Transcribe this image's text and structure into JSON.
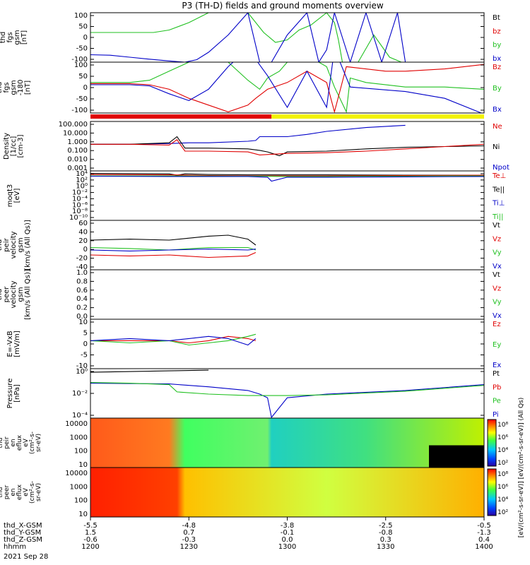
{
  "title": "P3 (TH-D) fields and ground moments overview",
  "colors": {
    "black": "#000000",
    "red": "#e00000",
    "green": "#20c020",
    "blue": "#0000c8",
    "yellow": "#f2f200",
    "bar_red": "#e00000"
  },
  "chart_data": {
    "type": "line",
    "x_range": [
      "1200",
      "1400"
    ],
    "x_tick_labels": [
      "1200",
      "1230",
      "1300",
      "1330",
      "1400"
    ],
    "footer": {
      "rows": [
        {
          "label": "thd_X-GSM",
          "values": [
            "-5.5",
            "-4.8",
            "-3.8",
            "-2.5",
            "-0.5"
          ]
        },
        {
          "label": "thd_Y-GSM",
          "values": [
            "1.5",
            "0.7",
            "-0.1",
            "-0.8",
            "-1.3"
          ]
        },
        {
          "label": "thd_Z-GSM",
          "values": [
            "-0.6",
            "-0.3",
            "0.0",
            "0.3",
            "0.4"
          ]
        },
        {
          "label": "hhmm",
          "values": [
            "1200",
            "1230",
            "1300",
            "1330",
            "1400"
          ]
        }
      ],
      "date": "2021 Sep 28"
    },
    "panels": [
      {
        "ylabel": [
          "thd",
          "fgs",
          "gsm",
          "[nT]"
        ],
        "yticks": [
          "100",
          "50",
          "0",
          "-50",
          "-100"
        ],
        "yrange": [
          -100,
          100
        ],
        "legend": [
          "Bt",
          "bz",
          "by",
          "bx"
        ],
        "series": [
          {
            "name": "by",
            "color": "green",
            "x": [
              0,
              0.16,
              0.2,
              0.25,
              0.3,
              0.37,
              0.4,
              0.44,
              0.47,
              0.5,
              0.53,
              0.56,
              0.6,
              0.62,
              0.63,
              0.64,
              0.68,
              0.72,
              0.76,
              0.79,
              0.8
            ],
            "y": [
              20,
              20,
              30,
              60,
              100,
              160,
              100,
              20,
              -20,
              -10,
              30,
              50,
              100,
              60,
              -10,
              -100,
              -100,
              10,
              -80,
              -100,
              -100
            ]
          },
          {
            "name": "bx",
            "color": "blue",
            "x": [
              0,
              0.05,
              0.1,
              0.15,
              0.2,
              0.24,
              0.27,
              0.3,
              0.35,
              0.4,
              0.43,
              0.46,
              0.5,
              0.55,
              0.58,
              0.6,
              0.62,
              0.66,
              0.7,
              0.74,
              0.78,
              0.8
            ],
            "y": [
              -70,
              -72,
              -80,
              -88,
              -95,
              -100,
              -90,
              -60,
              10,
              100,
              -100,
              -100,
              10,
              100,
              -100,
              -50,
              100,
              -100,
              100,
              -100,
              100,
              -100
            ]
          }
        ]
      },
      {
        "ylabel": [
          "thd",
          "fgs",
          "gsm",
          "-180",
          "[nT]"
        ],
        "yticks": [
          "100",
          "50",
          "0",
          "-50",
          "-100"
        ],
        "yrange": [
          -125,
          100
        ],
        "legend": [
          "Bz",
          "By",
          "Bx"
        ],
        "series": [
          {
            "name": "By",
            "color": "green",
            "x": [
              0,
              0.1,
              0.15,
              0.2,
              0.25,
              0.3,
              0.35,
              0.4,
              0.43,
              0.45,
              0.48,
              0.5,
              0.55,
              0.6,
              0.62,
              0.65,
              0.66,
              0.7,
              0.8,
              0.9,
              1
            ],
            "y": [
              10,
              10,
              20,
              60,
              100,
              160,
              100,
              20,
              -20,
              30,
              60,
              100,
              130,
              80,
              -10,
              -120,
              30,
              10,
              -10,
              -10,
              -20
            ]
          },
          {
            "name": "Bz",
            "color": "red",
            "x": [
              0,
              0.1,
              0.15,
              0.2,
              0.25,
              0.3,
              0.35,
              0.4,
              0.42,
              0.45,
              0.5,
              0.55,
              0.6,
              0.62,
              0.65,
              0.75,
              0.8,
              0.9,
              1
            ],
            "y": [
              5,
              5,
              0,
              -20,
              -60,
              -90,
              -120,
              -90,
              -60,
              -20,
              10,
              60,
              10,
              -120,
              80,
              60,
              60,
              70,
              90
            ]
          },
          {
            "name": "Bx",
            "color": "blue",
            "x": [
              0,
              0.1,
              0.15,
              0.2,
              0.25,
              0.3,
              0.35,
              0.4,
              0.45,
              0.5,
              0.55,
              0.6,
              0.62,
              0.66,
              0.8,
              0.9,
              1
            ],
            "y": [
              0,
              0,
              -5,
              -40,
              -70,
              -20,
              80,
              160,
              40,
              -100,
              60,
              -100,
              160,
              -10,
              -30,
              -60,
              -130
            ]
          }
        ]
      },
      {
        "ylabel": [
          "Density",
          "[1/cc]",
          "[cm-3]"
        ],
        "yticks": [
          "100.000",
          "10.000",
          "1.000",
          "0.100",
          "0.010",
          "0.001"
        ],
        "log": true,
        "yrange": [
          -3.5,
          3
        ],
        "legend": [
          "Ne",
          "Ni",
          "Npot"
        ],
        "series": [
          {
            "name": "Npot",
            "color": "blue",
            "x": [
              0,
              0.1,
              0.2,
              0.25,
              0.3,
              0.4,
              0.42,
              0.43,
              0.5,
              0.55,
              0.6,
              0.7,
              0.8
            ],
            "y": [
              0,
              0,
              0.1,
              0.2,
              0.2,
              0.4,
              0.5,
              1,
              1,
              1.3,
              1.7,
              2.2,
              2.5
            ]
          },
          {
            "name": "Ni",
            "color": "black",
            "x": [
              0,
              0.1,
              0.2,
              0.22,
              0.24,
              0.3,
              0.4,
              0.43,
              0.45,
              0.48,
              0.5,
              0.6,
              0.7,
              0.8,
              0.9,
              1
            ],
            "y": [
              0,
              0,
              0.2,
              1,
              -0.5,
              -0.5,
              -0.6,
              -0.8,
              -1,
              -1.5,
              -1,
              -0.9,
              -0.6,
              -0.4,
              -0.3,
              -0.2
            ]
          },
          {
            "name": "Ne",
            "color": "red",
            "x": [
              0,
              0.1,
              0.2,
              0.22,
              0.24,
              0.3,
              0.4,
              0.43,
              0.5,
              0.6,
              0.7,
              0.8,
              0.9,
              1
            ],
            "y": [
              0,
              0,
              -0.1,
              0.6,
              -0.9,
              -0.9,
              -1,
              -1.4,
              -1.2,
              -1.1,
              -0.9,
              -0.6,
              -0.3,
              0
            ]
          }
        ]
      },
      {
        "ylabel": [
          "moqt3",
          "[eV]"
        ],
        "yticks": [
          "10⁴",
          "10²",
          "10⁰",
          "10⁻²",
          "10⁻⁴",
          "10⁻⁶",
          "10⁻⁸",
          "10⁻¹⁰"
        ],
        "log": true,
        "yrange": [
          -10.5,
          4.5
        ],
        "legend": [
          "Te⊥",
          "Te||",
          "Ti⊥",
          "Ti||"
        ],
        "series": [
          {
            "name": "Te||",
            "color": "black",
            "x": [
              0,
              0.2,
              0.22,
              0.24,
              0.3,
              0.4,
              0.5,
              0.6,
              0.8,
              1
            ],
            "y": [
              3.7,
              3.6,
              3.2,
              3.6,
              3.4,
              3.3,
              3.3,
              3.3,
              3.2,
              3.2
            ]
          },
          {
            "name": "Te⊥",
            "color": "red",
            "x": [
              0,
              0.2,
              0.3,
              0.4,
              0.5,
              0.6,
              0.8,
              1
            ],
            "y": [
              3.4,
              3.3,
              3.1,
              3,
              3,
              3,
              3.1,
              3.2
            ]
          },
          {
            "name": "Ti||",
            "color": "green",
            "x": [
              0,
              0.2,
              0.4,
              0.5,
              0.6,
              0.8,
              1
            ],
            "y": [
              3,
              3,
              2.9,
              2.8,
              2.8,
              2.9,
              3
            ]
          },
          {
            "name": "Ti⊥",
            "color": "blue",
            "x": [
              0,
              0.2,
              0.4,
              0.45,
              0.46,
              0.5,
              0.6,
              0.8,
              1
            ],
            "y": [
              2.9,
              2.8,
              2.8,
              2.6,
              1.4,
              2.6,
              2.6,
              2.7,
              2.8
            ]
          }
        ]
      },
      {
        "ylabel": [
          "thd",
          "peir",
          "velocity",
          "gsm",
          "[km/s (All Qs)]"
        ],
        "yticks": [
          "60",
          "40",
          "20",
          "0",
          "-20",
          "-40"
        ],
        "yrange": [
          -40,
          60
        ],
        "legend": [
          "Vt",
          "Vz",
          "Vy",
          "Vx"
        ],
        "series": [
          {
            "name": "Vt",
            "color": "black",
            "x": [
              0,
              0.1,
              0.2,
              0.3,
              0.35,
              0.4,
              0.42
            ],
            "y": [
              20,
              22,
              20,
              28,
              30,
              22,
              10
            ]
          },
          {
            "name": "Vy",
            "color": "green",
            "x": [
              0,
              0.1,
              0.2,
              0.3,
              0.4,
              0.42
            ],
            "y": [
              5,
              3,
              0,
              5,
              5,
              0
            ]
          },
          {
            "name": "Vx",
            "color": "blue",
            "x": [
              0,
              0.1,
              0.2,
              0.3,
              0.4,
              0.42
            ],
            "y": [
              0,
              -2,
              0,
              2,
              0,
              2
            ]
          },
          {
            "name": "Vz",
            "color": "red",
            "x": [
              0,
              0.1,
              0.2,
              0.3,
              0.4,
              0.42
            ],
            "y": [
              -10,
              -12,
              -10,
              -15,
              -12,
              -5
            ]
          }
        ]
      },
      {
        "ylabel": [
          "thd",
          "peer",
          "velocity",
          "gsm",
          "[km/s (All Qs)]"
        ],
        "yticks": [
          "1.0",
          "0.8",
          "0.6",
          "0.4",
          "0.2",
          "0.0"
        ],
        "yrange": [
          0,
          1
        ],
        "legend": [
          "Vt",
          "Vz",
          "Vy",
          "Vx"
        ],
        "series": []
      },
      {
        "ylabel": [
          "E=-VxB",
          "[mV/m]"
        ],
        "yticks": [
          "10",
          "5",
          "0",
          "-5",
          "-10"
        ],
        "yrange": [
          -13,
          10
        ],
        "legend": [
          "Ez",
          "Ey",
          "Ex"
        ],
        "series": [
          {
            "name": "Ez",
            "color": "red",
            "x": [
              0,
              0.1,
              0.2,
              0.25,
              0.3,
              0.35,
              0.4,
              0.42
            ],
            "y": [
              0,
              0,
              0,
              -1,
              0,
              2,
              1,
              0
            ]
          },
          {
            "name": "Ey",
            "color": "green",
            "x": [
              0,
              0.1,
              0.2,
              0.25,
              0.3,
              0.35,
              0.4,
              0.42
            ],
            "y": [
              0,
              -1,
              0,
              -2,
              -1,
              0,
              2,
              3
            ]
          },
          {
            "name": "Ex",
            "color": "blue",
            "x": [
              0,
              0.1,
              0.2,
              0.25,
              0.3,
              0.35,
              0.4,
              0.42
            ],
            "y": [
              0,
              1,
              0,
              1,
              2,
              1,
              -2,
              1
            ]
          }
        ]
      },
      {
        "ylabel": [
          "Pressure",
          "[nPa]"
        ],
        "yticks": [
          "10⁰",
          "10⁻²",
          "10⁻⁴"
        ],
        "log": true,
        "yrange": [
          -5.3,
          1.5
        ],
        "legend": [
          "Pt",
          "Pb",
          "Pe",
          "Pi"
        ],
        "series": [
          {
            "name": "Pt",
            "color": "black",
            "x": [
              0,
              0.1,
              0.2,
              0.3
            ],
            "y": [
              1,
              1.1,
              1.2,
              1.3
            ]
          },
          {
            "name": "Pi",
            "color": "blue",
            "x": [
              0,
              0.2,
              0.3,
              0.4,
              0.43,
              0.45,
              0.46,
              0.5,
              0.6,
              0.8,
              1
            ],
            "y": [
              -0.5,
              -0.6,
              -1,
              -1.5,
              -2,
              -2.5,
              -5.2,
              -2.5,
              -2,
              -1.5,
              -0.7
            ]
          },
          {
            "name": "Pe",
            "color": "green",
            "x": [
              0,
              0.1,
              0.2,
              0.22,
              0.3,
              0.4,
              0.5,
              0.6,
              0.8,
              1
            ],
            "y": [
              -0.4,
              -0.5,
              -0.7,
              -1.7,
              -2,
              -2.2,
              -2.2,
              -2.1,
              -1.6,
              -0.8
            ]
          }
        ]
      }
    ],
    "spectrograms": [
      {
        "ylabel": [
          "thd",
          "peir",
          "en",
          "eflux",
          "eV",
          "(cm²-s-",
          "sr-eV)"
        ],
        "yticks": [
          "10000",
          "1000",
          "100",
          "10"
        ]
      },
      {
        "ylabel": [
          "thd",
          "peer",
          "en",
          "eflux",
          "eV",
          "(cm²-s-",
          "sr-eV)"
        ],
        "yticks": [
          "10000",
          "1000",
          "100",
          "10"
        ]
      }
    ],
    "colorbars": [
      {
        "ticks": [
          "10⁸",
          "10⁶",
          "10⁴",
          "10²"
        ]
      },
      {
        "ticks": [
          "10⁸",
          "10⁶",
          "10⁴",
          "10²"
        ]
      }
    ],
    "colorbar_label": "[eV/(cm²-s-sr-eV)] [eV/(cm²-s-sr-eV)] (All Qs)"
  }
}
